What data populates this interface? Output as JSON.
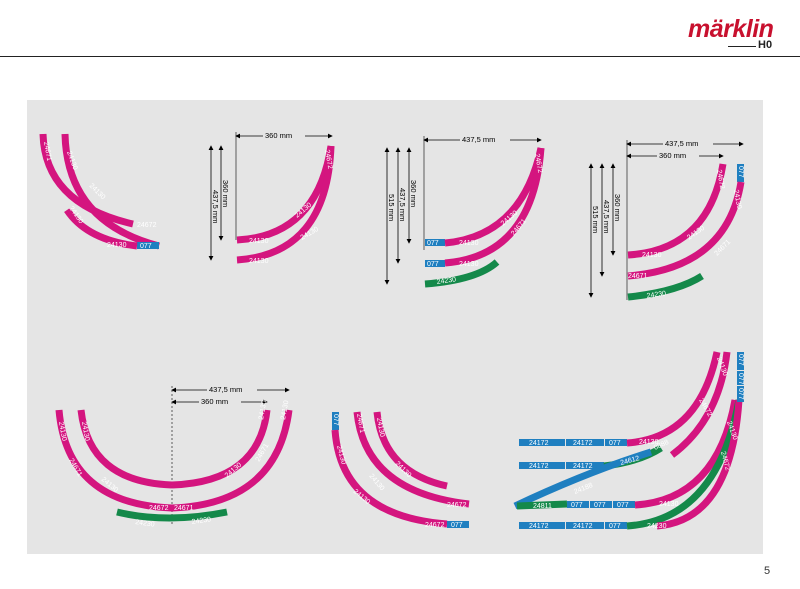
{
  "brand": {
    "name": "märklin",
    "scale": "H0"
  },
  "colors": {
    "magenta": "#d4157f",
    "green": "#14894a",
    "blue": "#1f7fc0",
    "panel": "#e5e5e5"
  },
  "page_number": "5",
  "dimensions": {
    "d360": "360 mm",
    "d4375": "437,5 mm",
    "d515": "515 mm"
  },
  "track": {
    "t24672": "24672",
    "t24130": "24130",
    "t24671": "24671",
    "t24230": "24230",
    "t077": "077",
    "t24172": "24172",
    "t24612": "24612",
    "t24188": "24188",
    "t24811": "24811",
    "t0888": "0888"
  }
}
